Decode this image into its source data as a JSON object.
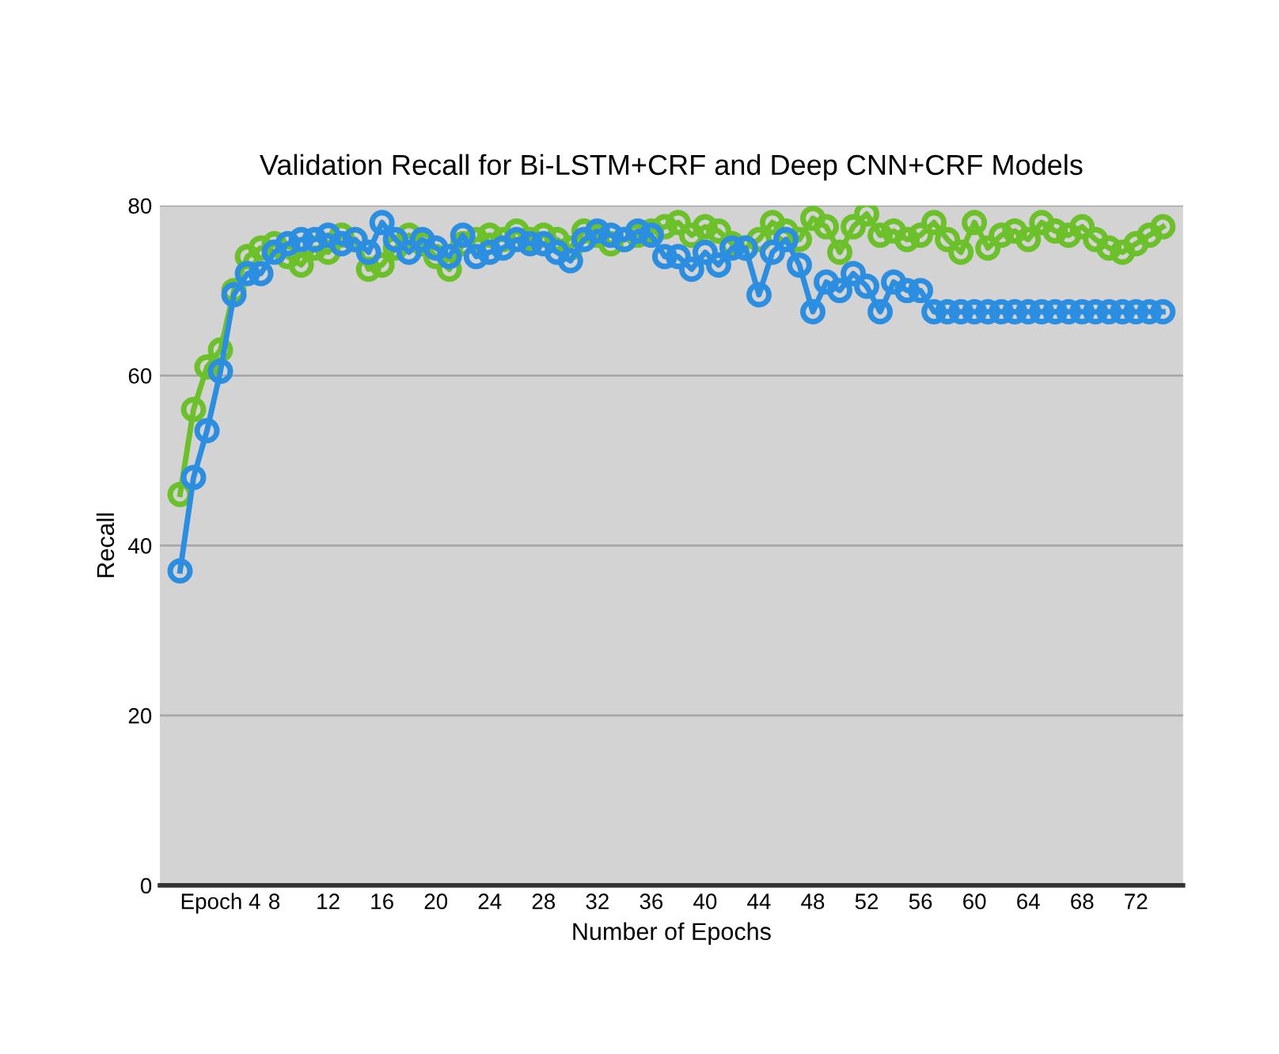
{
  "chart_data": {
    "type": "line",
    "title": "Validation Recall for Bi-LSTM+CRF and Deep CNN+CRF Models",
    "xlabel": "Number of Epochs",
    "ylabel": "Recall",
    "categories": [
      null,
      null,
      null,
      "Epoch 4",
      null,
      null,
      null,
      "8",
      null,
      null,
      null,
      "12",
      null,
      null,
      null,
      "16",
      null,
      null,
      null,
      "20",
      null,
      null,
      null,
      "24",
      null,
      null,
      null,
      "28",
      null,
      null,
      null,
      "32",
      null,
      null,
      null,
      "36",
      null,
      null,
      null,
      "40",
      null,
      null,
      null,
      "44",
      null,
      null,
      null,
      "48",
      null,
      null,
      null,
      "52",
      null,
      null,
      null,
      "56",
      null,
      null,
      null,
      "60",
      null,
      null,
      null,
      "64",
      null,
      null,
      null,
      "68",
      null,
      null,
      null,
      "72",
      null,
      null
    ],
    "series": [
      {
        "color": "#6cc02a",
        "values": [
          46,
          56,
          61,
          63,
          70,
          74,
          75,
          75.5,
          74,
          73,
          75,
          74.5,
          76.5,
          76,
          72.5,
          73,
          75,
          76.5,
          75.5,
          74,
          72.5,
          75.5,
          76,
          76.5,
          76,
          77,
          76,
          76.5,
          76,
          75,
          77,
          76.5,
          75.5,
          76,
          76.5,
          77,
          77.5,
          78,
          76.5,
          77.5,
          77,
          75.5,
          75,
          76,
          78,
          77,
          76,
          78.5,
          77.5,
          74.5,
          77.5,
          79,
          76.5,
          77,
          76,
          76.5,
          78,
          76,
          74.5,
          78,
          75,
          76.5,
          77,
          76,
          78,
          77,
          76.5,
          77.5,
          76,
          75,
          74.5,
          75.5,
          76.5,
          77.5
        ]
      },
      {
        "color": "#2b8ee0",
        "values": [
          37,
          48,
          53.5,
          60.5,
          69.5,
          72,
          72,
          74.5,
          75.5,
          76,
          76,
          76.5,
          75.5,
          76,
          74.5,
          78,
          76,
          74.5,
          76,
          75,
          74,
          76.5,
          74,
          74.5,
          75,
          76,
          75.5,
          75.5,
          74.5,
          73.5,
          76,
          77,
          76.5,
          76,
          77,
          76.5,
          74,
          74,
          72.5,
          74.5,
          73,
          75,
          75,
          69.5,
          74.5,
          76,
          73,
          67.5,
          71,
          70,
          72,
          70.5,
          67.5,
          71,
          70,
          70,
          67.5,
          67.5,
          67.5,
          67.5,
          67.5,
          67.5,
          67.5,
          67.5,
          67.5,
          67.5,
          67.5,
          67.5,
          67.5,
          67.5,
          67.5,
          67.5,
          67.5,
          67.5
        ]
      }
    ],
    "ylim": [
      0,
      80
    ],
    "yticks": [
      0,
      20,
      40,
      60,
      80
    ],
    "grid": "y",
    "marker": "circle",
    "line_style": "solid"
  }
}
